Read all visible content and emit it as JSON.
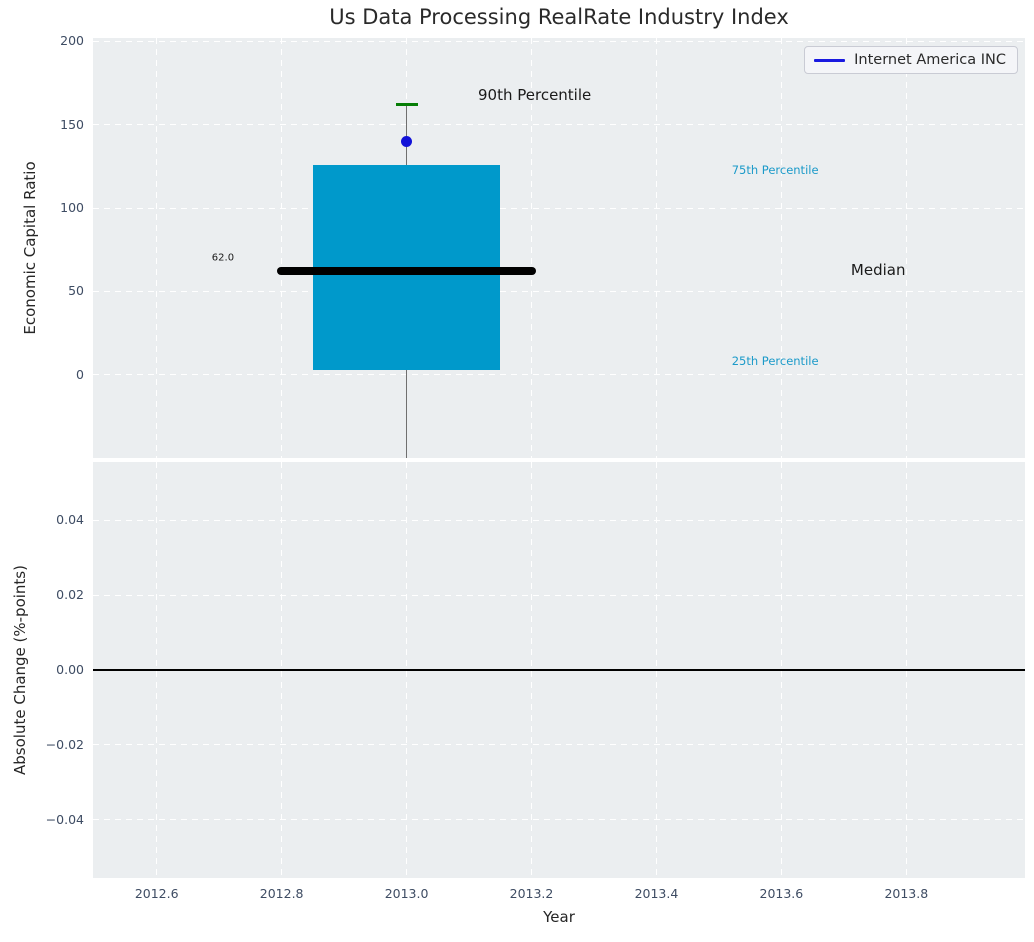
{
  "figure": {
    "background": "#ffffff",
    "plot_background": "#ebeef0",
    "tick_label_color": "#3e4c63"
  },
  "chart_data": [
    {
      "type": "boxplot",
      "title": "Us Data Processing RealRate Industry Index",
      "ylabel": "Economic Capital Ratio",
      "xlim": [
        2012.498,
        2013.99
      ],
      "ylim": [
        -50,
        202
      ],
      "yticks": {
        "values": [
          0,
          50,
          100,
          150,
          200
        ],
        "labels": [
          "0",
          "50",
          "100",
          "150",
          "200"
        ]
      },
      "xticks": {
        "values": [
          2012.6,
          2012.8,
          2013.0,
          2013.2,
          2013.4,
          2013.6,
          2013.8
        ],
        "labels": [
          "2012.6",
          "2012.8",
          "2013.0",
          "2013.2",
          "2013.4",
          "2013.6",
          "2013.8"
        ],
        "show_labels": false
      },
      "grid": {
        "on": true,
        "style": "dashed",
        "color": "#ffffff"
      },
      "box": {
        "x": 2013.0,
        "q1": 3,
        "median": 62,
        "q3": 126,
        "whisker_high": 162,
        "whisker_low": -50,
        "box_halfwidth": 0.15,
        "median_halfwidth": 0.207,
        "cap_halfwidth": 0.0177,
        "box_color": "#0099cb",
        "median_color": "#000000",
        "whisker_color": "#6f6f6f",
        "cap_color": "#067d06"
      },
      "company_point": {
        "x": 2013.0,
        "y": 140,
        "color": "#1212d8"
      },
      "legend": {
        "label": "Internet America INC",
        "line_color": "#1a1ae0",
        "position": "upper right"
      },
      "annotations": [
        {
          "text": "90th Percentile",
          "x": 2013.205,
          "y": 168,
          "color": "#1a1a1a",
          "size": 15
        },
        {
          "text": "75th Percentile",
          "x": 2013.59,
          "y": 123,
          "color": "#1b9ac9",
          "size": 11.5
        },
        {
          "text": "Median",
          "x": 2013.755,
          "y": 63,
          "color": "#1a1a1a",
          "size": 15
        },
        {
          "text": "25th Percentile",
          "x": 2013.59,
          "y": 8,
          "color": "#1b9ac9",
          "size": 11.5
        },
        {
          "text": "62.0",
          "x": 2012.706,
          "y": 70,
          "color": "#1a1a1a",
          "size": 10
        }
      ]
    },
    {
      "type": "line",
      "ylabel": "Absolute Change (%-points)",
      "xlabel": "Year",
      "xlim": [
        2012.498,
        2013.99
      ],
      "ylim": [
        -0.0555,
        0.0555
      ],
      "yticks": {
        "values": [
          -0.04,
          -0.02,
          0,
          0.02,
          0.04
        ],
        "labels": [
          "−0.04",
          "−0.02",
          "0.00",
          "0.02",
          "0.04"
        ]
      },
      "xticks": {
        "values": [
          2012.6,
          2012.8,
          2013.0,
          2013.2,
          2013.4,
          2013.6,
          2013.8
        ],
        "labels": [
          "2012.6",
          "2012.8",
          "2013.0",
          "2013.2",
          "2013.4",
          "2013.6",
          "2013.8"
        ],
        "show_labels": true
      },
      "grid": {
        "on": true,
        "style": "dashed",
        "color": "#ffffff"
      },
      "zero_line": {
        "y": 0,
        "color": "#000000"
      },
      "series": []
    }
  ]
}
